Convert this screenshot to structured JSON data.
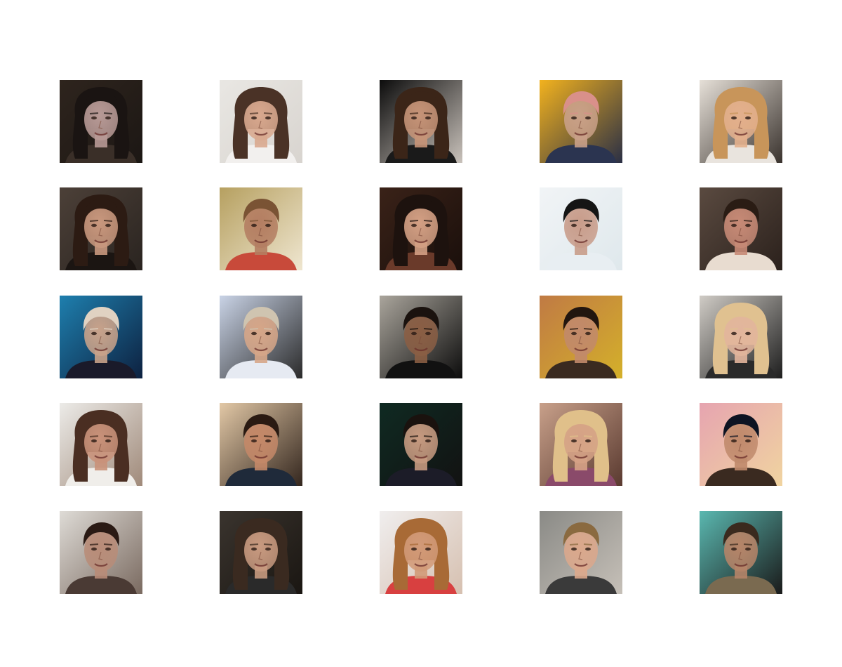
{
  "figure": {
    "rows": 5,
    "columns": 5,
    "background": "#ffffff"
  },
  "tiles": [
    {
      "bg": "#2e241d",
      "bg2": "#1c1714",
      "skin": "#b89a96",
      "hair": "#1a1412",
      "hair_style": "long",
      "shirt": "#3a2f28"
    },
    {
      "bg": "#e9e7e3",
      "bg2": "#d8d4cf",
      "skin": "#d9a98f",
      "hair": "#4a3226",
      "hair_style": "long",
      "shirt": "#f2f0ee"
    },
    {
      "bg": "#0c0c0c",
      "bg2": "#c9c2bb",
      "skin": "#c69478",
      "hair": "#3b2518",
      "hair_style": "long",
      "shirt": "#1a1a1a"
    },
    {
      "bg": "#f2b21e",
      "bg2": "#2a2f45",
      "skin": "#c9a088",
      "hair": "#d9908a",
      "hair_style": "short",
      "shirt": "#2b3450"
    },
    {
      "bg": "#e6e0d8",
      "bg2": "#3a332e",
      "skin": "#e3b08d",
      "hair": "#c8955a",
      "hair_style": "long",
      "shirt": "#e9e4de"
    },
    {
      "bg": "#4c4038",
      "bg2": "#2a2420",
      "skin": "#c9987e",
      "hair": "#2c1b13",
      "hair_style": "long",
      "shirt": "#1b1512"
    },
    {
      "bg": "#b6a060",
      "bg2": "#efe6d0",
      "skin": "#b47e62",
      "hair": "#7a5334",
      "hair_style": "short",
      "shirt": "#c84a3a"
    },
    {
      "bg": "#3a2218",
      "bg2": "#1a0f0b",
      "skin": "#d4a084",
      "hair": "#1d120e",
      "hair_style": "long",
      "shirt": "#6a3a2a"
    },
    {
      "bg": "#f1f4f6",
      "bg2": "#dfe8ec",
      "skin": "#c89c8a",
      "hair": "#151515",
      "hair_style": "short",
      "shirt": "#e8eef2"
    },
    {
      "bg": "#5a4a40",
      "bg2": "#2b211c",
      "skin": "#c78a76",
      "hair": "#2a1c14",
      "hair_style": "short",
      "shirt": "#e8dcd0"
    },
    {
      "bg": "#1e7fae",
      "bg2": "#0d2140",
      "skin": "#c8a28a",
      "hair": "#e0d2c2",
      "hair_style": "short",
      "shirt": "#1a1a2a"
    },
    {
      "bg": "#c9d3e6",
      "bg2": "#2a2a2a",
      "skin": "#d6a688",
      "hair": "#cfc4b0",
      "hair_style": "short",
      "shirt": "#e6eaf2"
    },
    {
      "bg": "#aaa59c",
      "bg2": "#0c0c0c",
      "skin": "#8a5e44",
      "hair": "#1a120e",
      "hair_style": "short",
      "shirt": "#111111"
    },
    {
      "bg": "#c07a44",
      "bg2": "#d4b02a",
      "skin": "#c28a6a",
      "hair": "#22160f",
      "hair_style": "short",
      "shirt": "#3a2a20"
    },
    {
      "bg": "#d0ccc6",
      "bg2": "#1e1e1e",
      "skin": "#e2b59c",
      "hair": "#e0c190",
      "hair_style": "long",
      "shirt": "#2a2a2a"
    },
    {
      "bg": "#ecebe8",
      "bg2": "#a08a7a",
      "skin": "#c9927a",
      "hair": "#4a2e22",
      "hair_style": "long",
      "shirt": "#f0eeea"
    },
    {
      "bg": "#e2c8a6",
      "bg2": "#33261e",
      "skin": "#c48868",
      "hair": "#2a1a12",
      "hair_style": "short",
      "shirt": "#1f2a3a"
    },
    {
      "bg": "#0f2a22",
      "bg2": "#121212",
      "skin": "#c69a80",
      "hair": "#1a120e",
      "hair_style": "short",
      "shirt": "#1c1c28"
    },
    {
      "bg": "#c8a08a",
      "bg2": "#5a3a30",
      "skin": "#d5a286",
      "hair": "#e0c08a",
      "hair_style": "long",
      "shirt": "#8a4a6a"
    },
    {
      "bg": "#e6a4b0",
      "bg2": "#f0d4a0",
      "skin": "#c08a6c",
      "hair": "#0d1322",
      "hair_style": "short",
      "shirt": "#3a2a20"
    },
    {
      "bg": "#dedbd6",
      "bg2": "#7a6a60",
      "skin": "#b88c78",
      "hair": "#2a1a14",
      "hair_style": "short",
      "shirt": "#4a3a34"
    },
    {
      "bg": "#3a342e",
      "bg2": "#1a1612",
      "skin": "#c89a80",
      "hair": "#3a2a20",
      "hair_style": "long",
      "shirt": "#2a2a2a"
    },
    {
      "bg": "#f0eeee",
      "bg2": "#d6c0b0",
      "skin": "#d29a78",
      "hair": "#a86a36",
      "hair_style": "long",
      "shirt": "#d84040"
    },
    {
      "bg": "#8a8a86",
      "bg2": "#c6c0b8",
      "skin": "#dba88c",
      "hair": "#8a6a40",
      "hair_style": "short",
      "shirt": "#3a3a3a"
    },
    {
      "bg": "#5ab8b0",
      "bg2": "#1a1a1a",
      "skin": "#b58468",
      "hair": "#3a2a1e",
      "hair_style": "short",
      "shirt": "#7a6a50"
    }
  ]
}
